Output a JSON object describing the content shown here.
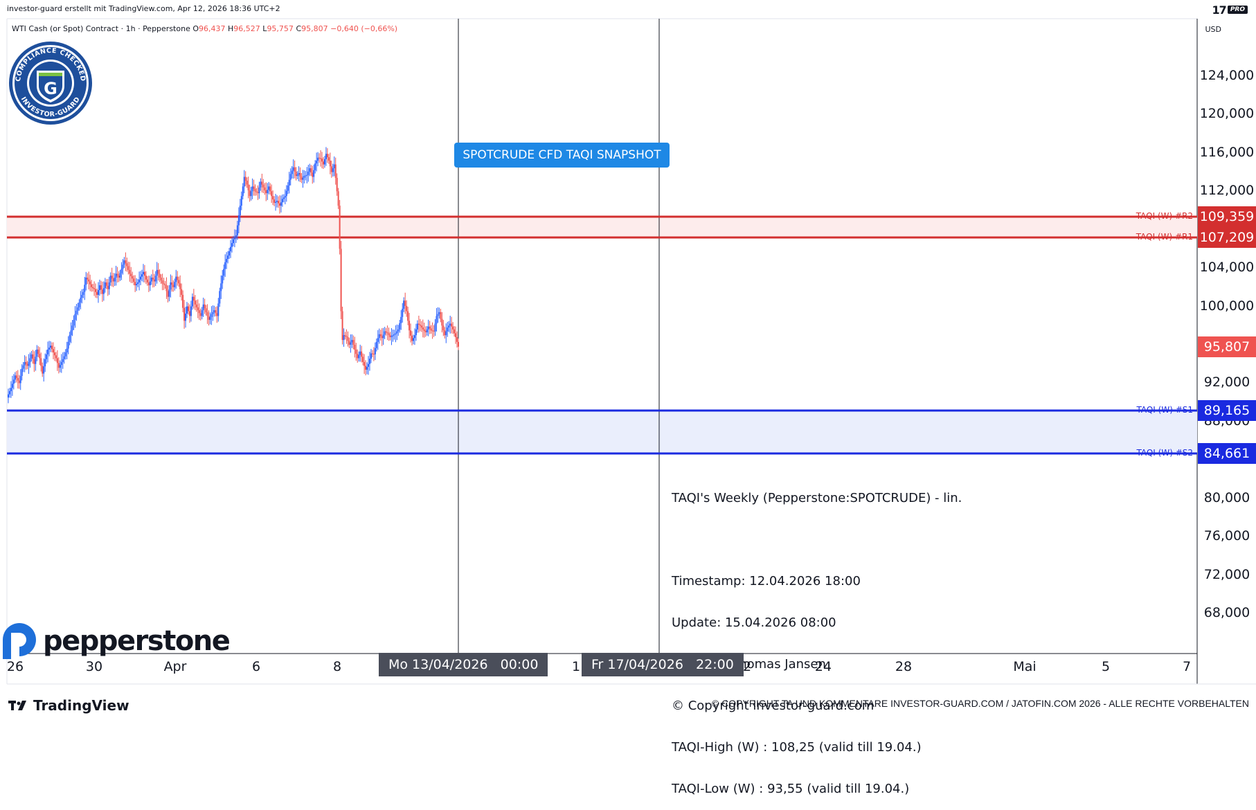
{
  "header": {
    "creator_line": "investor-guard erstellt mit TradingView.com, Apr 12, 2026 18:36 UTC+2",
    "symbol_line": "WTI Cash (or Spot) Contract · 1h · Pepperstone",
    "ohlc": {
      "o_label": "O",
      "o": "96,437",
      "h_label": "H",
      "h": "96,527",
      "l_label": "L",
      "l": "95,757",
      "c_label": "C",
      "c": "95,807",
      "change": "−0,640 (−0,66%)"
    },
    "brand_tv": "17",
    "brand_pro": "PRO",
    "currency": "USD"
  },
  "badge": {
    "text_top": "COMPLIANCE CHECKED",
    "text_bottom": "INVESTOR-GUARD",
    "letter": "G"
  },
  "banner": {
    "text": "SPOTCRUDE CFD TAQI SNAPSHOT"
  },
  "infobox": {
    "title": "TAQI's Weekly (Pepperstone:SPOTCRUDE) - lin.",
    "lines": [
      "Timestamp: 12.04.2026 18:00",
      "Update: 15.04.2026 08:00",
      "Ersteller: Thomas Jansen",
      "© Copyright investor-guard.com",
      "TAQI-High (W) : 108,25 (valid till 19.04.)",
      "TAQI-Low (W) : 93,55 (valid till 19.04.)"
    ]
  },
  "footer": {
    "pepperstone": "pepperstone",
    "tradingview": "TradingView",
    "copyright": "© COPYRIGHT TA UND KOMMENTARE INVESTOR-GUARD.COM / JATOFIN.COM 2026 - ALLE RECHTE VORBEHALTEN"
  },
  "colors": {
    "up": "#26a69a",
    "down": "#ef5350",
    "candle_up": "#2962ff",
    "resistance": "#d32f2f",
    "support": "#1a2ae0",
    "price_tag": "#ef5350"
  },
  "chart_data": {
    "type": "candlestick",
    "symbol": "SPOTCRUDE",
    "timeframe": "1h",
    "y_ticks": [
      "124,000",
      "120,000",
      "116,000",
      "112,000",
      "104,000",
      "100,000",
      "92,000",
      "88,000",
      "80,000",
      "76,000",
      "72,000",
      "68,000"
    ],
    "y_range": [
      64.5,
      126.5
    ],
    "x_ticks": [
      "26",
      "30",
      "Apr",
      "6",
      "8",
      "1",
      "22",
      "24",
      "28",
      "Mai",
      "5",
      "7"
    ],
    "x_highlights": [
      "Mo 13/04/2026   00:00",
      "Fr 17/04/2026   22:00"
    ],
    "last_price": {
      "value": 95.807,
      "label": "95,807"
    },
    "levels": [
      {
        "name": "TAQI (W) #R2",
        "value": 109.359,
        "label": "109,359",
        "kind": "resistance"
      },
      {
        "name": "TAQI (W) #R1",
        "value": 107.209,
        "label": "107,209",
        "kind": "resistance"
      },
      {
        "name": "TAQI (W) #S1",
        "value": 89.165,
        "label": "89,165",
        "kind": "support"
      },
      {
        "name": "TAQI (W) #S2",
        "value": 84.661,
        "label": "84,661",
        "kind": "support"
      }
    ],
    "price_path": [
      [
        0,
        90.5
      ],
      [
        6,
        91.5
      ],
      [
        12,
        92.8
      ],
      [
        18,
        92.0
      ],
      [
        22,
        93.5
      ],
      [
        26,
        94.2
      ],
      [
        30,
        93.8
      ],
      [
        36,
        95.0
      ],
      [
        40,
        94.0
      ],
      [
        44,
        95.5
      ],
      [
        48,
        94.6
      ],
      [
        52,
        93.0
      ],
      [
        56,
        94.5
      ],
      [
        60,
        95.5
      ],
      [
        64,
        95.9
      ],
      [
        68,
        95.2
      ],
      [
        72,
        94.6
      ],
      [
        76,
        93.6
      ],
      [
        80,
        94.2
      ],
      [
        84,
        94.8
      ],
      [
        88,
        95.6
      ],
      [
        92,
        97.0
      ],
      [
        96,
        98.0
      ],
      [
        100,
        99.2
      ],
      [
        104,
        99.9
      ],
      [
        108,
        100.9
      ],
      [
        112,
        101.5
      ],
      [
        116,
        103.0
      ],
      [
        120,
        102.6
      ],
      [
        124,
        102.0
      ],
      [
        128,
        101.8
      ],
      [
        132,
        101.2
      ],
      [
        136,
        102.2
      ],
      [
        140,
        101.3
      ],
      [
        144,
        102.5
      ],
      [
        148,
        101.8
      ],
      [
        152,
        103.2
      ],
      [
        156,
        102.6
      ],
      [
        160,
        103.4
      ],
      [
        164,
        103.0
      ],
      [
        168,
        103.9
      ],
      [
        172,
        104.8
      ],
      [
        176,
        104.2
      ],
      [
        180,
        103.4
      ],
      [
        184,
        102.9
      ],
      [
        188,
        102.2
      ],
      [
        192,
        102.5
      ],
      [
        196,
        103.1
      ],
      [
        200,
        103.6
      ],
      [
        204,
        102.8
      ],
      [
        208,
        102.2
      ],
      [
        212,
        103.0
      ],
      [
        216,
        102.6
      ],
      [
        220,
        103.8
      ],
      [
        224,
        103.0
      ],
      [
        228,
        102.4
      ],
      [
        232,
        102.2
      ],
      [
        236,
        101.0
      ],
      [
        240,
        102.5
      ],
      [
        244,
        102.0
      ],
      [
        248,
        103.1
      ],
      [
        252,
        102.4
      ],
      [
        256,
        101.2
      ],
      [
        260,
        98.5
      ],
      [
        264,
        100.0
      ],
      [
        268,
        99.0
      ],
      [
        272,
        101.0
      ],
      [
        276,
        100.2
      ],
      [
        280,
        99.6
      ],
      [
        284,
        99.0
      ],
      [
        288,
        100.2
      ],
      [
        292,
        99.4
      ],
      [
        296,
        98.6
      ],
      [
        300,
        99.2
      ],
      [
        304,
        99.6
      ],
      [
        308,
        99.0
      ],
      [
        312,
        101.6
      ],
      [
        316,
        103.2
      ],
      [
        320,
        104.6
      ],
      [
        324,
        105.3
      ],
      [
        328,
        106.2
      ],
      [
        332,
        107.0
      ],
      [
        336,
        107.4
      ],
      [
        340,
        109.5
      ],
      [
        344,
        111.5
      ],
      [
        348,
        113.5
      ],
      [
        352,
        112.7
      ],
      [
        356,
        111.5
      ],
      [
        360,
        112.5
      ],
      [
        364,
        112.0
      ],
      [
        368,
        111.8
      ],
      [
        372,
        113.0
      ],
      [
        376,
        112.4
      ],
      [
        380,
        111.8
      ],
      [
        384,
        112.5
      ],
      [
        388,
        111.5
      ],
      [
        392,
        110.8
      ],
      [
        396,
        111.0
      ],
      [
        400,
        110.5
      ],
      [
        404,
        111.2
      ],
      [
        408,
        111.5
      ],
      [
        412,
        112.6
      ],
      [
        416,
        113.8
      ],
      [
        420,
        114.5
      ],
      [
        424,
        113.6
      ],
      [
        428,
        113.9
      ],
      [
        432,
        113.2
      ],
      [
        436,
        113.6
      ],
      [
        440,
        113.7
      ],
      [
        444,
        114.4
      ],
      [
        448,
        113.5
      ],
      [
        452,
        114.9
      ],
      [
        456,
        115.5
      ],
      [
        460,
        115.4
      ],
      [
        464,
        114.8
      ],
      [
        468,
        115.9
      ],
      [
        472,
        115.2
      ],
      [
        476,
        114.0
      ],
      [
        480,
        114.8
      ],
      [
        484,
        112.0
      ],
      [
        486,
        110.5
      ],
      [
        488,
        106.0
      ],
      [
        490,
        99.5
      ],
      [
        492,
        96.5
      ],
      [
        494,
        97.0
      ],
      [
        498,
        96.8
      ],
      [
        502,
        96.0
      ],
      [
        506,
        96.5
      ],
      [
        510,
        95.5
      ],
      [
        514,
        94.6
      ],
      [
        518,
        95.3
      ],
      [
        522,
        94.2
      ],
      [
        526,
        93.4
      ],
      [
        530,
        94.0
      ],
      [
        534,
        95.1
      ],
      [
        538,
        95.0
      ],
      [
        542,
        96.3
      ],
      [
        546,
        97.1
      ],
      [
        550,
        96.7
      ],
      [
        554,
        97.4
      ],
      [
        558,
        97.2
      ],
      [
        562,
        96.8
      ],
      [
        566,
        97.0
      ],
      [
        570,
        97.2
      ],
      [
        574,
        97.6
      ],
      [
        578,
        98.9
      ],
      [
        582,
        100.6
      ],
      [
        586,
        99.5
      ],
      [
        590,
        97.5
      ],
      [
        594,
        96.4
      ],
      [
        598,
        97.0
      ],
      [
        602,
        98.2
      ],
      [
        606,
        98.0
      ],
      [
        610,
        97.6
      ],
      [
        614,
        97.3
      ],
      [
        618,
        97.9
      ],
      [
        622,
        97.5
      ],
      [
        626,
        97.4
      ],
      [
        630,
        99.0
      ],
      [
        634,
        99.4
      ],
      [
        638,
        98.0
      ],
      [
        642,
        97.0
      ],
      [
        646,
        97.8
      ],
      [
        650,
        98.2
      ],
      [
        654,
        97.6
      ],
      [
        658,
        96.8
      ],
      [
        662,
        95.8
      ]
    ]
  }
}
